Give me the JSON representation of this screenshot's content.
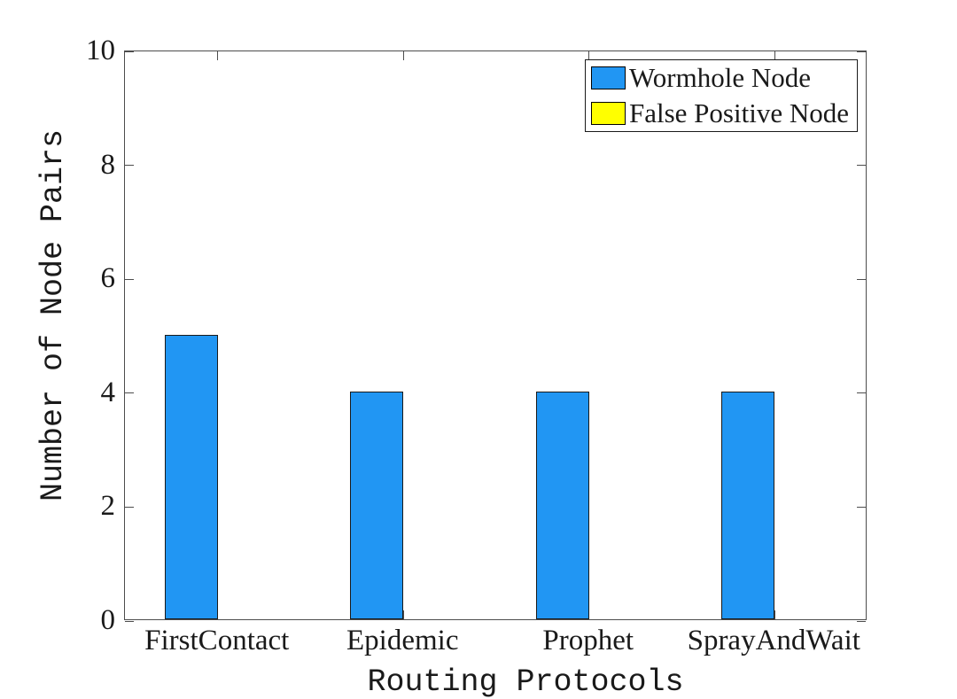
{
  "chart_data": {
    "type": "bar",
    "title": "",
    "xlabel": "Routing Protocols",
    "ylabel": "Number of Node Pairs",
    "categories": [
      "FirstContact",
      "Epidemic",
      "Prophet",
      "SprayAndWait"
    ],
    "series": [
      {
        "name": "Wormhole Node",
        "color": "#2196F3",
        "values": [
          5,
          4,
          4,
          4
        ]
      },
      {
        "name": "False Positive Node",
        "color": "#FFFF00",
        "values": [
          0,
          0,
          0,
          0
        ]
      }
    ],
    "ylim": [
      0,
      10
    ],
    "yticks": [
      0,
      2,
      4,
      6,
      8,
      10
    ],
    "grid": false,
    "legend_position": "top-right",
    "bar_edge_color": "#1a1a1a",
    "axis_color": "#4d4d4d",
    "text_color": "#1a1a1a",
    "background": "#ffffff"
  }
}
